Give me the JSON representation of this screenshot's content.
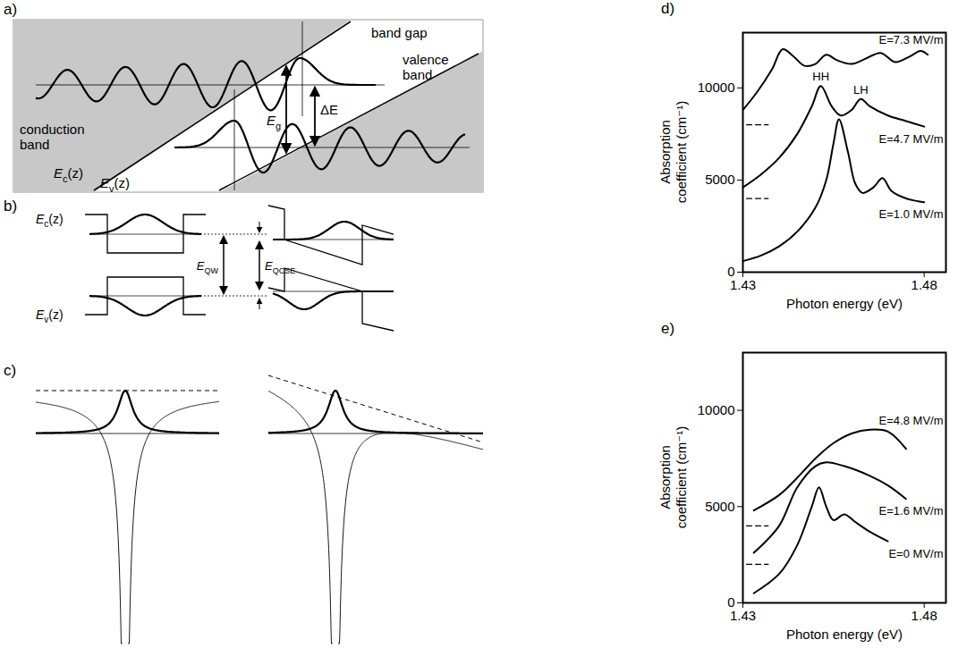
{
  "panels": [
    "a)",
    "b)",
    "c)",
    "d)",
    "e)"
  ],
  "diagram_a": {
    "band_gap": "band gap",
    "conduction_band": "conduction band",
    "valence_band": "valence band",
    "Ec": {
      "base": "E",
      "sub": "c",
      "tail": "(z)"
    },
    "Ev": {
      "base": "E",
      "sub": "v",
      "tail": "(z)"
    },
    "Eg": {
      "base": "E",
      "sub": "g",
      "tail": ""
    },
    "dE": "ΔE"
  },
  "diagram_b": {
    "Ec": {
      "base": "E",
      "sub": "c",
      "tail": "(z)"
    },
    "Ev": {
      "base": "E",
      "sub": "v",
      "tail": "(z)"
    },
    "EQW": {
      "base": "E",
      "sub": "QW",
      "tail": ""
    },
    "EQCSE": {
      "base": "E",
      "sub": "QCSE",
      "tail": ""
    }
  },
  "chart_data": [
    {
      "type": "line",
      "xlabel": "Photon energy (eV)",
      "ylabel": "Absorption coefficient (cm⁻¹)",
      "xlim": [
        1.43,
        1.486
      ],
      "xticks": [
        1.43,
        1.48
      ],
      "ylim": [
        0,
        13000
      ],
      "yticks": [
        0,
        5000,
        10000
      ],
      "series": [
        {
          "name": "E=1.0 MV/m",
          "color": "#000000",
          "line_style": "solid",
          "x": [
            1.43,
            1.435,
            1.44,
            1.445,
            1.45,
            1.453,
            1.455,
            1.4565,
            1.459,
            1.461,
            1.463,
            1.466,
            1.4685,
            1.471,
            1.475,
            1.48
          ],
          "values": [
            600,
            900,
            1400,
            2200,
            3500,
            5000,
            7000,
            8300,
            6500,
            4800,
            4300,
            4600,
            5100,
            4400,
            4000,
            3800
          ]
        },
        {
          "name": "E=4.7 MV/m",
          "color": "#000000",
          "line_style": "solid",
          "x": [
            1.43,
            1.435,
            1.44,
            1.445,
            1.449,
            1.4515,
            1.4545,
            1.457,
            1.46,
            1.4625,
            1.465,
            1.47,
            1.475,
            1.48
          ],
          "values": [
            4600,
            5300,
            6200,
            7500,
            9000,
            10100,
            9000,
            8500,
            8800,
            9400,
            9000,
            8500,
            8200,
            7900
          ],
          "offset": {
            "y": 4000,
            "x": [
              1.431,
              1.437
            ]
          }
        },
        {
          "name": "E=7.3 MV/m",
          "color": "#000000",
          "line_style": "solid",
          "x": [
            1.43,
            1.434,
            1.438,
            1.441,
            1.444,
            1.447,
            1.45,
            1.453,
            1.456,
            1.46,
            1.464,
            1.468,
            1.472,
            1.476,
            1.479,
            1.481
          ],
          "values": [
            8800,
            9800,
            11000,
            12100,
            11700,
            11200,
            11300,
            11800,
            11500,
            11300,
            11600,
            11900,
            11400,
            11700,
            12000,
            11800
          ],
          "offset": {
            "y": 8000,
            "x": [
              1.431,
              1.437
            ]
          }
        }
      ],
      "annotations": [
        {
          "text": "HH",
          "x": 1.4515,
          "y": 10100
        },
        {
          "text": "LH",
          "x": 1.4625,
          "y": 9400
        }
      ]
    },
    {
      "type": "line",
      "xlabel": "Photon energy (eV)",
      "ylabel": "Absorption coefficient (cm⁻¹)",
      "xlim": [
        1.43,
        1.486
      ],
      "xticks": [
        1.43,
        1.48
      ],
      "ylim": [
        0,
        13000
      ],
      "yticks": [
        0,
        5000,
        10000
      ],
      "series": [
        {
          "name": "E=0 MV/m",
          "color": "#000000",
          "line_style": "solid",
          "x": [
            1.433,
            1.44,
            1.445,
            1.449,
            1.451,
            1.453,
            1.455,
            1.458,
            1.461,
            1.465,
            1.47
          ],
          "values": [
            500,
            1500,
            3000,
            5000,
            6000,
            5000,
            4300,
            4600,
            4200,
            3700,
            3200
          ]
        },
        {
          "name": "E=1.6 MV/m",
          "color": "#000000",
          "line_style": "solid",
          "x": [
            1.433,
            1.44,
            1.445,
            1.45,
            1.453,
            1.458,
            1.465,
            1.47,
            1.475
          ],
          "values": [
            2600,
            4000,
            6000,
            7100,
            7300,
            7100,
            6600,
            6100,
            5400
          ],
          "offset": {
            "y": 2000,
            "x": [
              1.431,
              1.437
            ]
          }
        },
        {
          "name": "E=4.8 MV/m",
          "color": "#000000",
          "line_style": "solid",
          "x": [
            1.433,
            1.44,
            1.445,
            1.45,
            1.455,
            1.46,
            1.465,
            1.47,
            1.475
          ],
          "values": [
            4800,
            5600,
            6500,
            7500,
            8300,
            8800,
            9000,
            8900,
            8000
          ],
          "offset": {
            "y": 4000,
            "x": [
              1.431,
              1.437
            ]
          }
        }
      ]
    }
  ]
}
